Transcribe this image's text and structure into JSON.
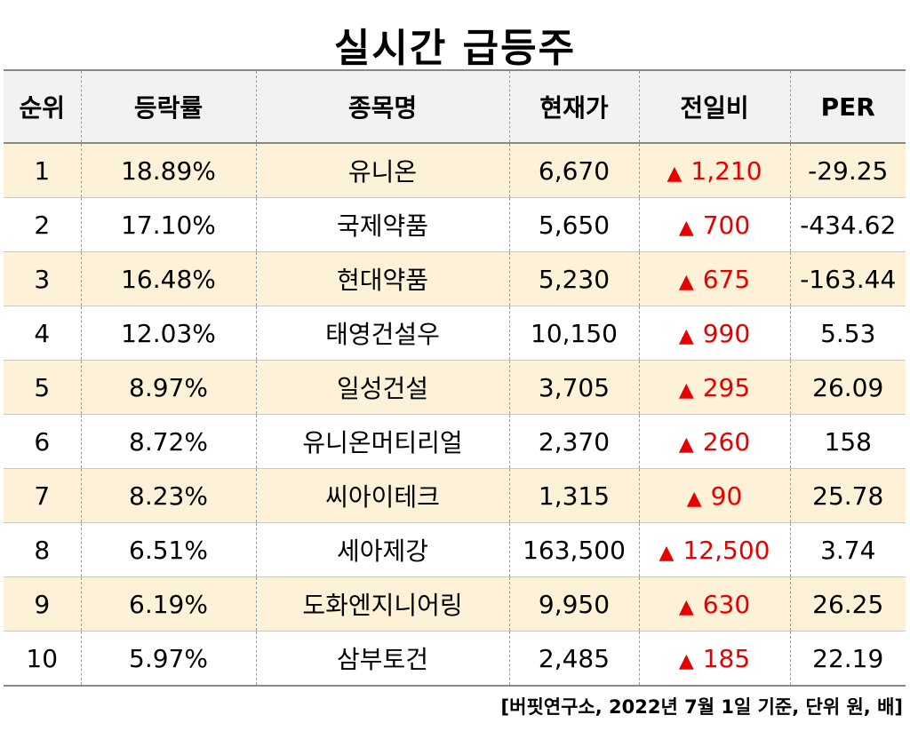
{
  "title": "실시간 급등주",
  "headers": [
    "순위",
    "등락률",
    "종목명",
    "현재가",
    "전일비",
    "PER"
  ],
  "up_symbol": "▲",
  "colors": {
    "row_highlight": "#fdf1d8",
    "header_bg": "#f2f2f2",
    "up": "#e60000"
  },
  "rows": [
    {
      "rank": "1",
      "change_rate": "18.89%",
      "name": "유니온",
      "price": "6,670",
      "diff": "1,210",
      "per": "-29.25"
    },
    {
      "rank": "2",
      "change_rate": "17.10%",
      "name": "국제약품",
      "price": "5,650",
      "diff": "700",
      "per": "-434.62"
    },
    {
      "rank": "3",
      "change_rate": "16.48%",
      "name": "현대약품",
      "price": "5,230",
      "diff": "675",
      "per": "-163.44"
    },
    {
      "rank": "4",
      "change_rate": "12.03%",
      "name": "태영건설우",
      "price": "10,150",
      "diff": "990",
      "per": "5.53"
    },
    {
      "rank": "5",
      "change_rate": "8.97%",
      "name": "일성건설",
      "price": "3,705",
      "diff": "295",
      "per": "26.09"
    },
    {
      "rank": "6",
      "change_rate": "8.72%",
      "name": "유니온머티리얼",
      "price": "2,370",
      "diff": "260",
      "per": "158"
    },
    {
      "rank": "7",
      "change_rate": "8.23%",
      "name": "씨아이테크",
      "price": "1,315",
      "diff": "90",
      "per": "25.78"
    },
    {
      "rank": "8",
      "change_rate": "6.51%",
      "name": "세아제강",
      "price": "163,500",
      "diff": "12,500",
      "per": "3.74"
    },
    {
      "rank": "9",
      "change_rate": "6.19%",
      "name": "도화엔지니어링",
      "price": "9,950",
      "diff": "630",
      "per": "26.25"
    },
    {
      "rank": "10",
      "change_rate": "5.97%",
      "name": "삼부토건",
      "price": "2,485",
      "diff": "185",
      "per": "22.19"
    }
  ],
  "source": "[버핏연구소, 2022년 7월 1일 기준, 단위 원, 배]"
}
